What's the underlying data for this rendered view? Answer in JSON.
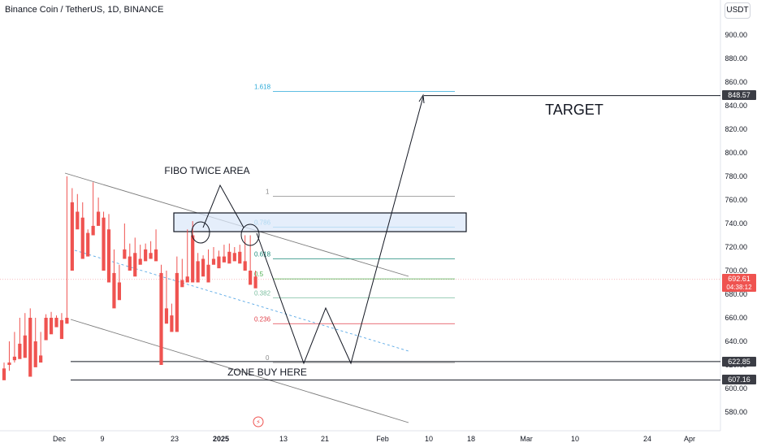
{
  "header": {
    "title": "Binance Coin / TetherUS, 1D, BINANCE",
    "currency": "USDT"
  },
  "chart_data": {
    "type": "candlestick",
    "ylim": [
      572,
      912
    ],
    "y_ticks": [
      580,
      600,
      620,
      640,
      660,
      680,
      700,
      720,
      740,
      760,
      780,
      800,
      820,
      840,
      860,
      880,
      900
    ],
    "x_tick_labels": [
      {
        "label": "Dec",
        "bold": false
      },
      {
        "label": "9",
        "bold": false
      },
      {
        "label": "23",
        "bold": false
      },
      {
        "label": "2025",
        "bold": true
      },
      {
        "label": "13",
        "bold": false
      },
      {
        "label": "21",
        "bold": false
      },
      {
        "label": "Feb",
        "bold": false
      },
      {
        "label": "10",
        "bold": false
      },
      {
        "label": "18",
        "bold": false
      },
      {
        "label": "Mar",
        "bold": false
      },
      {
        "label": "10",
        "bold": false
      },
      {
        "label": "24",
        "bold": false
      },
      {
        "label": "Apr",
        "bold": false
      }
    ],
    "candles": [
      [
        617,
        622,
        610,
        607
      ],
      [
        622,
        640,
        615,
        620
      ],
      [
        627,
        648,
        622,
        624
      ],
      [
        638,
        660,
        632,
        625
      ],
      [
        645,
        664,
        642,
        626
      ],
      [
        660,
        668,
        615,
        610
      ],
      [
        640,
        660,
        628,
        618
      ],
      [
        628,
        648,
        625,
        622
      ],
      [
        660,
        663,
        643,
        641
      ],
      [
        660,
        665,
        648,
        646
      ],
      [
        660,
        662,
        655,
        652
      ],
      [
        658,
        664,
        645,
        642
      ],
      [
        660,
        780,
        655,
        655
      ],
      [
        758,
        770,
        705,
        700
      ],
      [
        750,
        765,
        740,
        735
      ],
      [
        745,
        758,
        715,
        710
      ],
      [
        732,
        735,
        715,
        712
      ],
      [
        738,
        775,
        735,
        730
      ],
      [
        750,
        762,
        740,
        738
      ],
      [
        745,
        750,
        703,
        700
      ],
      [
        735,
        748,
        695,
        690
      ],
      [
        698,
        718,
        672,
        668
      ],
      [
        690,
        705,
        678,
        675
      ],
      [
        718,
        740,
        715,
        710
      ],
      [
        712,
        723,
        705,
        700
      ],
      [
        715,
        728,
        700,
        695
      ],
      [
        710,
        722,
        708,
        705
      ],
      [
        718,
        723,
        710,
        708
      ],
      [
        715,
        725,
        712,
        710
      ],
      [
        718,
        735,
        712,
        708
      ],
      [
        698,
        705,
        665,
        620
      ],
      [
        668,
        700,
        663,
        655
      ],
      [
        662,
        672,
        652,
        648
      ],
      [
        698,
        712,
        663,
        648
      ],
      [
        692,
        710,
        688,
        686
      ],
      [
        695,
        735,
        693,
        690
      ],
      [
        730,
        742,
        700,
        690
      ],
      [
        708,
        715,
        693,
        690
      ],
      [
        710,
        713,
        698,
        695
      ],
      [
        705,
        718,
        695,
        690
      ],
      [
        710,
        720,
        707,
        705
      ],
      [
        712,
        717,
        705,
        702
      ],
      [
        712,
        722,
        710,
        707
      ],
      [
        716,
        723,
        712,
        706
      ],
      [
        715,
        720,
        710,
        708
      ],
      [
        716,
        722,
        710,
        706
      ],
      [
        708,
        730,
        702,
        700
      ],
      [
        700,
        730,
        690,
        688
      ],
      [
        695,
        700,
        690,
        685
      ]
    ],
    "fibonacci": [
      {
        "level": "1.618",
        "price": 852,
        "color": "#2aa9d8"
      },
      {
        "level": "1",
        "price": 763,
        "color": "#888888"
      },
      {
        "level": "0.786",
        "price": 737,
        "color": "#2aa9d8"
      },
      {
        "level": "0.618",
        "price": 710,
        "color": "#1e8a7a"
      },
      {
        "level": "0.5",
        "price": 693,
        "color": "#4caf50"
      },
      {
        "level": "0.382",
        "price": 677,
        "color": "#7cbfa0"
      },
      {
        "level": "0.236",
        "price": 655,
        "color": "#e0404a"
      },
      {
        "level": "0",
        "price": 622,
        "color": "#888888"
      }
    ],
    "horizontal_levels": [
      848.57,
      622.85,
      607.16
    ],
    "annotations": [
      "FIBO TWICE AREA",
      "TARGET",
      "ZONE BUY HERE"
    ],
    "price_labels": [
      {
        "text": "848.57",
        "style": "dark"
      },
      {
        "text": "692.61",
        "subtext": "04:38:12",
        "style": "red"
      },
      {
        "text": "622.85",
        "style": "dark"
      },
      {
        "text": "607.16",
        "style": "dark"
      }
    ],
    "colors": {
      "up": "#26a69a",
      "down": "#ef5350",
      "axis_text": "#131722"
    }
  }
}
